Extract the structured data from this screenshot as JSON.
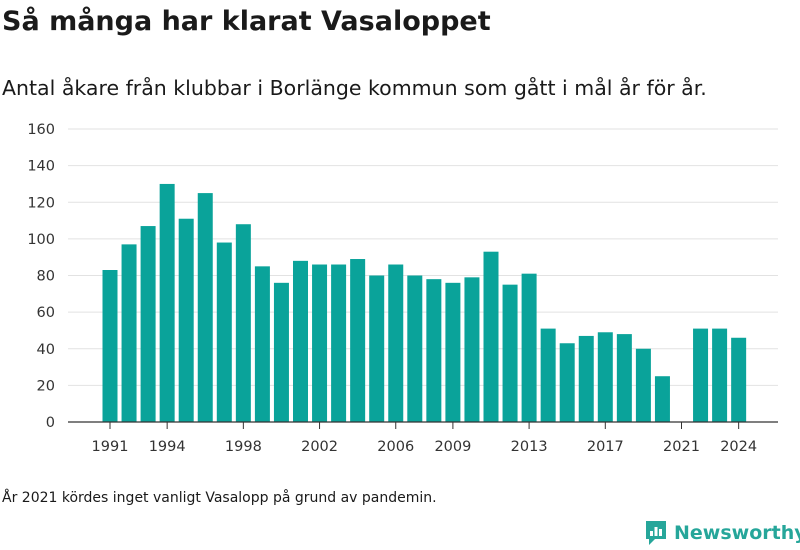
{
  "chart_data": {
    "type": "bar",
    "title": "Så många har klarat Vasaloppet",
    "subtitle": "Antal åkare från klubbar i Borlänge kommun som gått i mål år för år.",
    "x": [
      1991,
      1992,
      1993,
      1994,
      1995,
      1996,
      1997,
      1998,
      1999,
      2000,
      2001,
      2002,
      2003,
      2004,
      2005,
      2006,
      2007,
      2008,
      2009,
      2010,
      2011,
      2012,
      2013,
      2014,
      2015,
      2016,
      2017,
      2018,
      2019,
      2020,
      2021,
      2022,
      2023,
      2024
    ],
    "values": [
      83,
      97,
      107,
      130,
      111,
      125,
      98,
      108,
      85,
      76,
      88,
      86,
      86,
      89,
      80,
      86,
      80,
      78,
      76,
      79,
      93,
      75,
      81,
      51,
      43,
      47,
      49,
      48,
      40,
      25,
      null,
      51,
      51,
      46
    ],
    "x_tick_labels": [
      "1991",
      "1994",
      "1998",
      "2002",
      "2006",
      "2009",
      "2013",
      "2017",
      "2021",
      "2024"
    ],
    "y_ticks": [
      0,
      20,
      40,
      60,
      80,
      100,
      120,
      140,
      160
    ],
    "ylim": [
      0,
      160
    ],
    "grid": "horizontal",
    "bar_color": "#0aa39a"
  },
  "footnote": "År 2021 kördes inget vanligt Vasalopp på grund av pandemin.",
  "brand": {
    "name": "Newsworthy",
    "color": "#26a69a"
  }
}
